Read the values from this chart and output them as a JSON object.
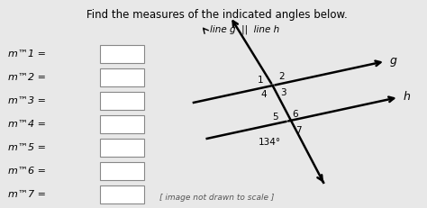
{
  "title": "Find the measures of the indicated angles below.",
  "legend_arrow_text": "line g  ||  line h",
  "footnote": "[ image not drawn to scale ]",
  "bg_color": "#e8e8e8",
  "labels_left": [
    "m™1 =",
    "m™2 =",
    "m™3 =",
    "m™4 =",
    "m™5 =",
    "m™6 =",
    "m™7 ="
  ],
  "angle_label": "134°",
  "line_g_label": "g",
  "line_h_label": "h",
  "ang_line_deg": 12,
  "ang_trans_deg": 58
}
